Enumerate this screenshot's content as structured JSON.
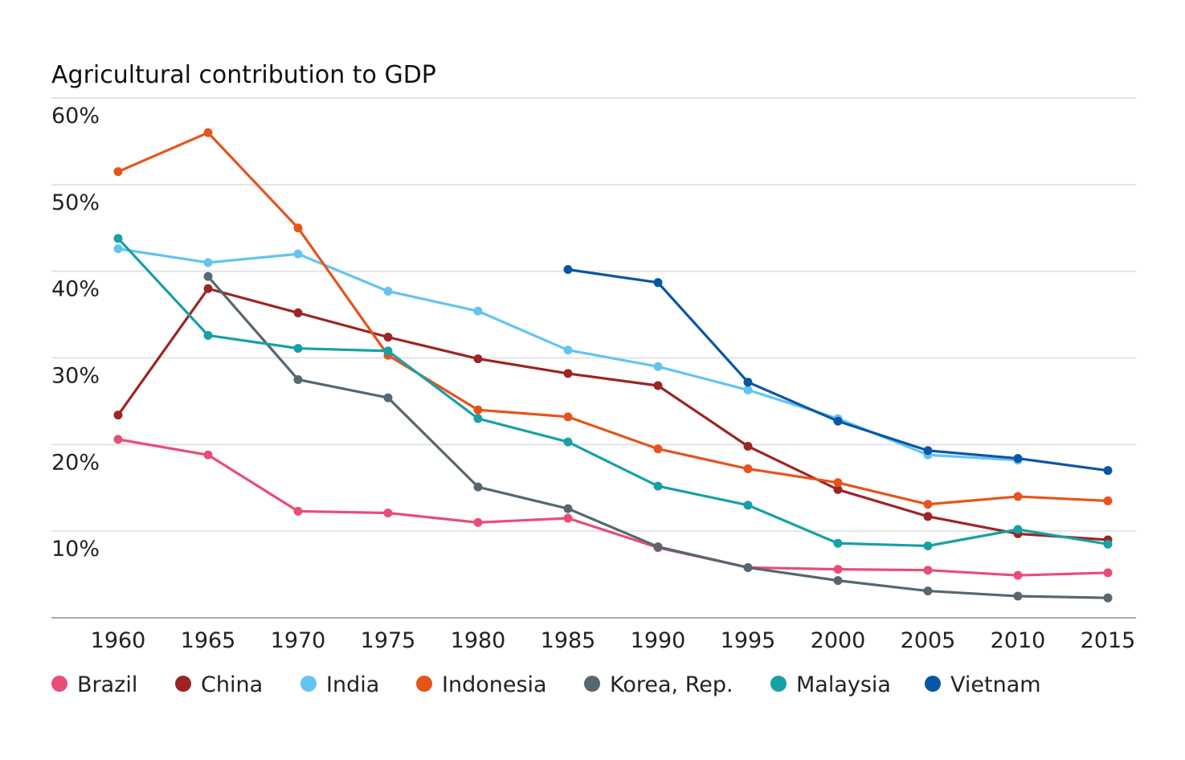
{
  "chart_data": {
    "type": "line",
    "title": "Agricultural contribution to GDP",
    "x": [
      1960,
      1965,
      1970,
      1975,
      1980,
      1985,
      1990,
      1995,
      2000,
      2005,
      2010,
      2015
    ],
    "x_tick_labels": [
      "1960",
      "1965",
      "1970",
      "1975",
      "1980",
      "1985",
      "1990",
      "1995",
      "2000",
      "2005",
      "2010",
      "2015"
    ],
    "y_ticks": [
      10,
      20,
      30,
      40,
      50,
      60
    ],
    "y_tick_labels": [
      "10%",
      "20%",
      "30%",
      "40%",
      "50%",
      "60%"
    ],
    "ylim": [
      0,
      60
    ],
    "grid": true,
    "legend_position": "bottom",
    "series": [
      {
        "name": "Brazil",
        "color": "#e84d78",
        "values": [
          20.6,
          18.8,
          12.3,
          12.1,
          11.0,
          11.5,
          8.1,
          5.8,
          5.6,
          5.5,
          4.9,
          5.2
        ]
      },
      {
        "name": "China",
        "color": "#9b2525",
        "values": [
          23.4,
          38.0,
          35.2,
          32.4,
          29.9,
          28.2,
          26.8,
          19.8,
          14.8,
          11.7,
          9.7,
          9.0
        ]
      },
      {
        "name": "India",
        "color": "#63c4f0",
        "values": [
          42.6,
          41.0,
          42.0,
          37.7,
          35.4,
          30.9,
          29.0,
          26.3,
          23.0,
          18.8,
          18.2,
          null
        ]
      },
      {
        "name": "Indonesia",
        "color": "#e6541a",
        "values": [
          51.5,
          56.0,
          45.0,
          30.3,
          24.0,
          23.2,
          19.5,
          17.2,
          15.6,
          13.1,
          14.0,
          13.5
        ]
      },
      {
        "name": "Korea, Rep.",
        "color": "#556770",
        "values": [
          null,
          39.4,
          27.5,
          25.4,
          15.1,
          12.6,
          8.2,
          5.8,
          4.3,
          3.1,
          2.5,
          2.3
        ]
      },
      {
        "name": "Malaysia",
        "color": "#17a0a6",
        "values": [
          43.8,
          32.6,
          31.1,
          30.8,
          23.0,
          20.3,
          15.2,
          13.0,
          8.6,
          8.3,
          10.2,
          8.5
        ]
      },
      {
        "name": "Vietnam",
        "color": "#0a56a6",
        "values": [
          null,
          null,
          null,
          null,
          null,
          40.2,
          38.7,
          27.2,
          22.7,
          19.3,
          18.4,
          17.0
        ]
      }
    ]
  }
}
